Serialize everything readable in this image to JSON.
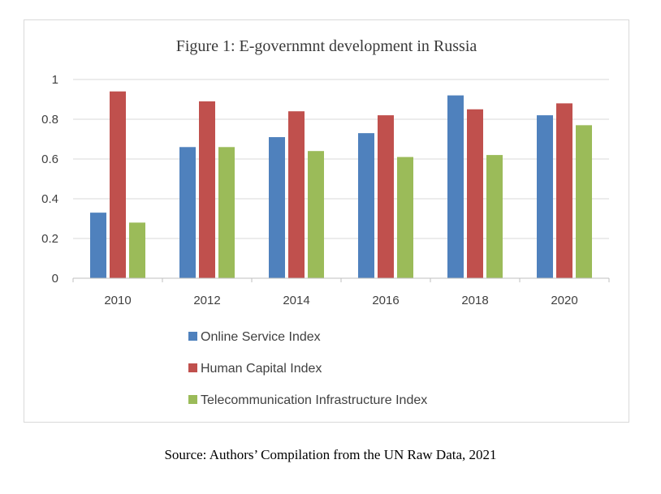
{
  "chart_data": {
    "type": "bar",
    "title": "Figure 1: E-governmnt development in Russia",
    "categories": [
      "2010",
      "2012",
      "2014",
      "2016",
      "2018",
      "2020"
    ],
    "ylim": [
      0,
      1
    ],
    "yticks": [
      "0",
      "0.2",
      "0.4",
      "0.6",
      "0.8",
      "1"
    ],
    "ytick_values": [
      0,
      0.2,
      0.4,
      0.6,
      0.8,
      1
    ],
    "grid": true,
    "legend_position": "bottom",
    "series": [
      {
        "name": "Online Service Index",
        "color": "#4f81bd",
        "values": [
          0.33,
          0.66,
          0.71,
          0.73,
          0.92,
          0.82
        ]
      },
      {
        "name": "Human Capital Index",
        "color": "#c0504d",
        "values": [
          0.94,
          0.89,
          0.84,
          0.82,
          0.85,
          0.88
        ]
      },
      {
        "name": "Telecommunication Infrastructure Index",
        "color": "#9bbb59",
        "values": [
          0.28,
          0.66,
          0.64,
          0.61,
          0.62,
          0.77
        ]
      }
    ]
  },
  "source": "Source: Authors’ Compilation from the UN Raw Data, 2021"
}
